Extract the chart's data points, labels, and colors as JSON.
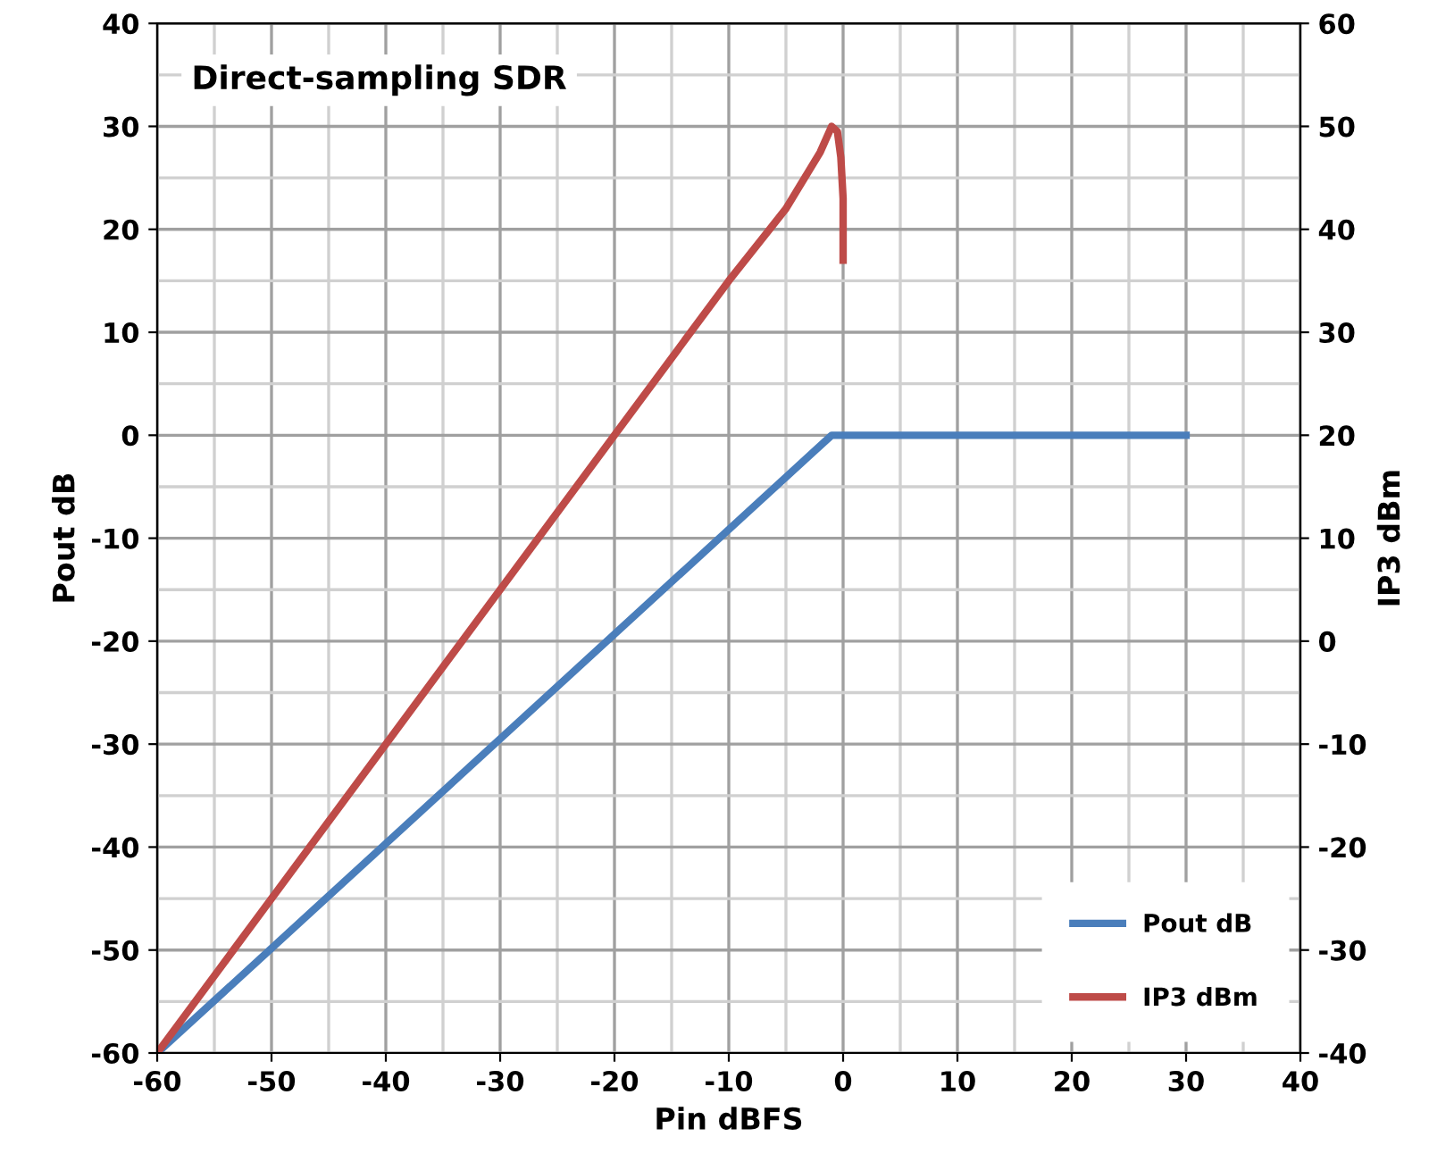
{
  "chart_data": {
    "type": "line",
    "title": "Direct-sampling SDR",
    "xlabel": "Pin dBFS",
    "ylabel": "Pout dB",
    "y2label": "IP3 dBm",
    "series": [
      {
        "name": "Pout dB",
        "color": "#4a7ebb",
        "x": [
          -60,
          -1,
          30
        ],
        "values": [
          -60,
          0,
          0
        ]
      },
      {
        "name": "IP3 dBm",
        "color": "#be4b48",
        "axis": "y2",
        "x": [
          -60,
          -40,
          -20,
          -10,
          -5,
          -2,
          -1,
          -0.5,
          -0.2,
          0,
          0
        ],
        "values": [
          -40,
          -10,
          20,
          35,
          42,
          47.5,
          50,
          49.5,
          47,
          43,
          37
        ]
      }
    ],
    "xlim": [
      -60,
      40
    ],
    "ylim": [
      -60,
      40
    ],
    "y2lim": [
      -40,
      60
    ],
    "xticks": [
      -60,
      {
        "value": -55,
        "label": null
      },
      -50,
      {
        "value": -45,
        "label": null
      },
      -40,
      {
        "value": -35,
        "label": null
      },
      -30,
      {
        "value": -25,
        "label": null
      },
      -20,
      {
        "value": -15,
        "label": null
      },
      -10,
      {
        "value": -5,
        "label": null
      },
      0,
      {
        "value": 5,
        "label": null
      },
      10,
      {
        "value": 15,
        "label": null
      },
      20,
      {
        "value": 25,
        "label": null
      },
      30,
      {
        "value": 35,
        "label": null
      },
      40
    ],
    "yticks": [
      -60,
      {
        "value": -55,
        "label": null
      },
      -50,
      {
        "value": -45,
        "label": null
      },
      -40,
      {
        "value": -35,
        "label": null
      },
      -30,
      {
        "value": -25,
        "label": null
      },
      -20,
      {
        "value": -15,
        "label": null
      },
      -10,
      {
        "value": -5,
        "label": null
      },
      0,
      {
        "value": 5,
        "label": null
      },
      10,
      {
        "value": 15,
        "label": null
      },
      20,
      {
        "value": 25,
        "label": null
      },
      30,
      {
        "value": 35,
        "label": null
      },
      40
    ],
    "y2ticks": [
      -40,
      -30,
      -20,
      -10,
      0,
      10,
      20,
      30,
      40,
      50,
      60
    ],
    "grid": true,
    "legend": "bottom right",
    "marker": "none",
    "line_style": "solid"
  }
}
